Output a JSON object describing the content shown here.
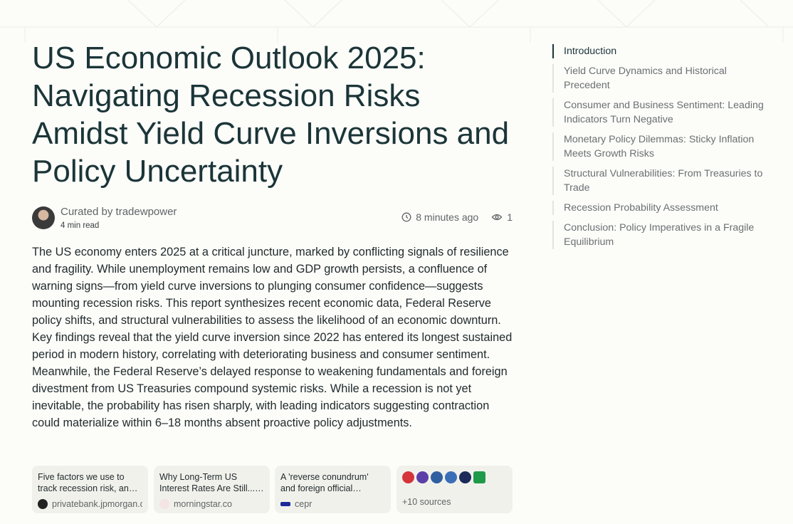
{
  "article": {
    "title": "US Economic Outlook 2025: Navigating Recession Risks Amidst Yield Curve Inversions and Policy Uncertainty",
    "author": "Curated by tradewpower",
    "read_time": "4 min read",
    "time_ago": "8 minutes ago",
    "views": "1",
    "body": "The US economy enters 2025 at a critical juncture, marked by conflicting signals of resilience and fragility. While unemployment remains low and GDP growth persists, a confluence of warning signs—from yield curve inversions to plunging consumer confidence—suggests mounting recession risks. This report synthesizes recent economic data, Federal Reserve policy shifts, and structural vulnerabilities to assess the likelihood of an economic downturn. Key findings reveal that the yield curve inversion since 2022 has entered its longest sustained period in modern history, correlating with deteriorating business and consumer sentiment. Meanwhile, the Federal Reserve’s delayed response to weakening fundamentals and foreign divestment from US Treasuries compound systemic risks. While a recession is not yet inevitable, the probability has risen sharply, with leading indicators suggesting contraction could materialize within 6–18 months absent proactive policy adjustments.",
    "sources": [
      {
        "title": "Five factors we use to track recession risk, and where they stand now",
        "domain": "privatebank.jpmorgan.com"
      },
      {
        "title": "Why Long-Term US Interest Rates Are Still... Rising",
        "domain": "morningstar.co"
      },
      {
        "title": "A 'reverse conundrum' and foreign official holdings",
        "domain": "cepr"
      }
    ],
    "more_sources": "+10 sources"
  },
  "toc": [
    "Introduction",
    "Yield Curve Dynamics and Historical Precedent",
    "Consumer and Business Sentiment: Leading Indicators Turn Negative",
    "Monetary Policy Dilemmas: Sticky Inflation Meets Growth Risks",
    "Structural Vulnerabilities: From Treasuries to Trade",
    "Recession Probability Assessment",
    "Conclusion: Policy Imperatives in a Fragile Equilibrium"
  ]
}
